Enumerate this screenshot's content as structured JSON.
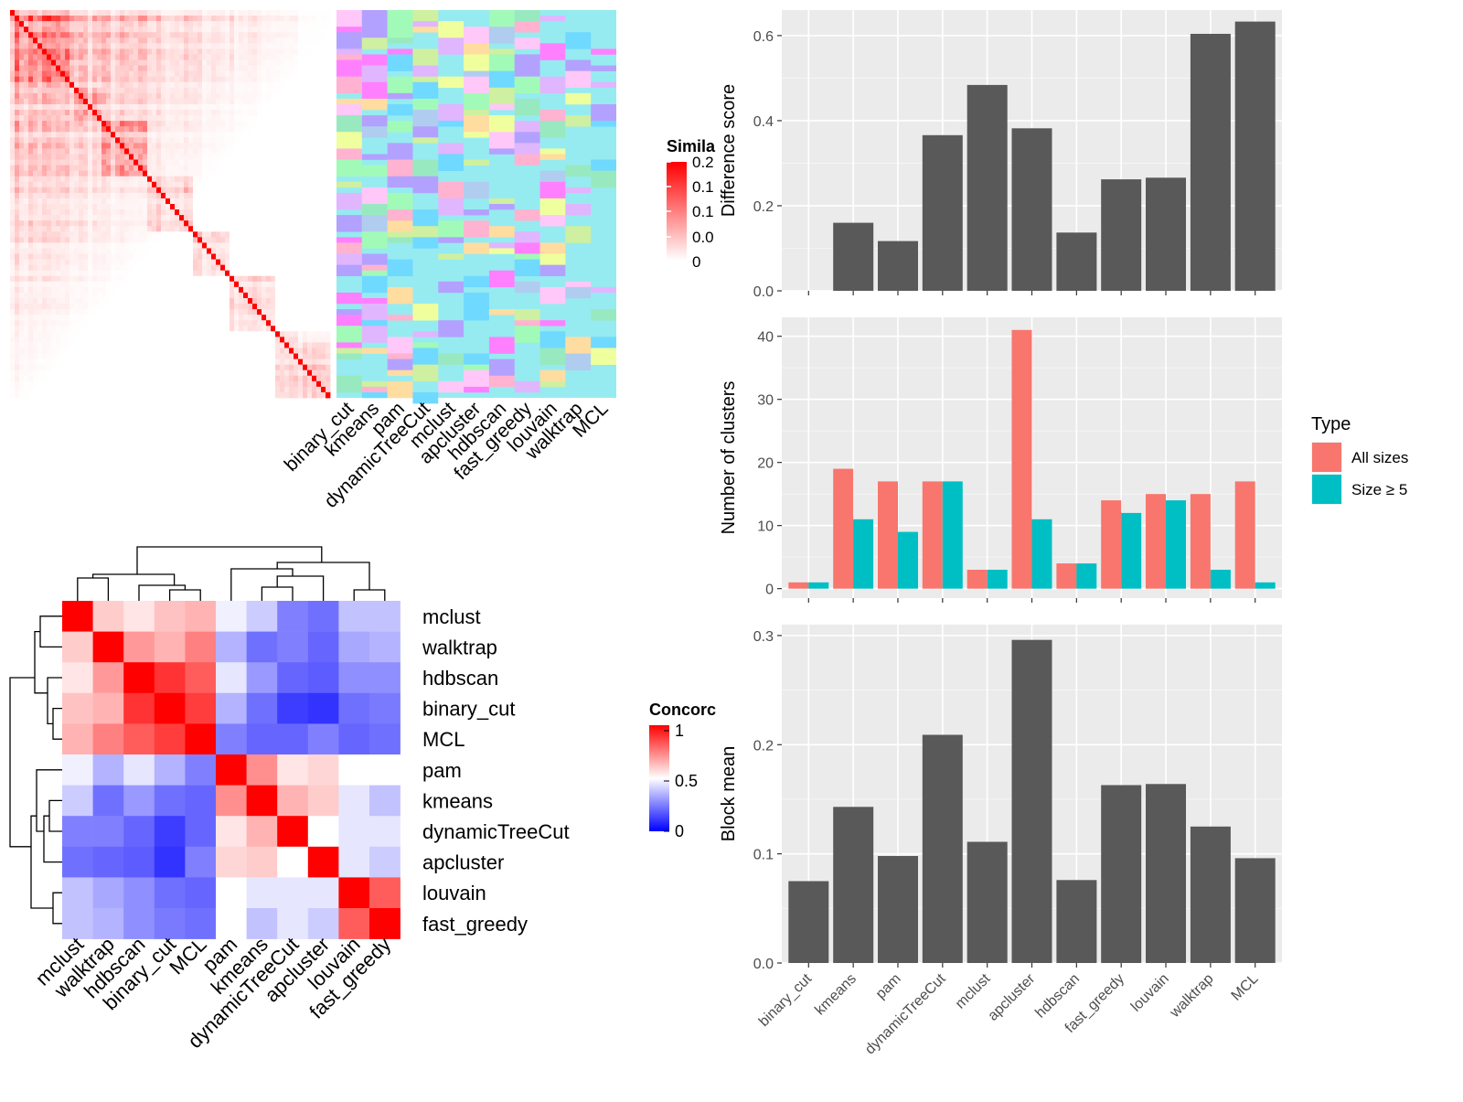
{
  "methods_order": [
    "binary_cut",
    "kmeans",
    "pam",
    "dynamicTreeCut",
    "mclust",
    "apcluster",
    "hdbscan",
    "fast_greedy",
    "louvain",
    "walktrap",
    "MCL"
  ],
  "chart_data": [
    {
      "type": "heatmap",
      "id": "similarity",
      "legend_title": "Simila",
      "legend_ticks": [
        "0.2",
        "0.1",
        "0.1",
        "0.0",
        "0"
      ],
      "column_labels": [
        "binary_cut",
        "kmeans",
        "pam",
        "dynamicTreeCut",
        "mclust",
        "apcluster",
        "hdbscan",
        "fast_greedy",
        "louvain",
        "walktrap",
        "MCL"
      ],
      "colors": {
        "high": "#ff0000",
        "low": "#ffffff",
        "base": "#96ebf0"
      },
      "palette": [
        "#ff80ff",
        "#b3a1ff",
        "#f0ff9e",
        "#a2fab8",
        "#b0cdf0",
        "#ffb3d0",
        "#70d9ff",
        "#cff0a0",
        "#ffc8f8",
        "#99e9c0",
        "#e0b6ff",
        "#ffdca0"
      ]
    },
    {
      "type": "heatmap",
      "id": "concordance",
      "legend_title": "Concorc",
      "legend_ticks": [
        "1",
        "0.5",
        "0"
      ],
      "row_labels": [
        "mclust",
        "walktrap",
        "hdbscan",
        "binary_cut",
        "MCL",
        "pam",
        "kmeans",
        "dynamicTreeCut",
        "apcluster",
        "louvain",
        "fast_greedy"
      ],
      "col_labels": [
        "mclust",
        "walktrap",
        "hdbscan",
        "binary_cut",
        "MCL",
        "pam",
        "kmeans",
        "dynamicTreeCut",
        "apcluster",
        "louvain",
        "fast_greedy"
      ],
      "values": [
        [
          1,
          0.6,
          0.55,
          0.62,
          0.65,
          0.47,
          0.4,
          0.25,
          0.22,
          0.38,
          0.38
        ],
        [
          0.6,
          1,
          0.7,
          0.65,
          0.75,
          0.35,
          0.22,
          0.25,
          0.2,
          0.33,
          0.35
        ],
        [
          0.55,
          0.7,
          1,
          0.9,
          0.82,
          0.45,
          0.3,
          0.2,
          0.18,
          0.28,
          0.28
        ],
        [
          0.62,
          0.65,
          0.9,
          1,
          0.88,
          0.35,
          0.22,
          0.12,
          0.1,
          0.22,
          0.24
        ],
        [
          0.65,
          0.75,
          0.82,
          0.88,
          1,
          0.25,
          0.2,
          0.2,
          0.25,
          0.2,
          0.22
        ],
        [
          0.47,
          0.35,
          0.45,
          0.35,
          0.25,
          1,
          0.72,
          0.55,
          0.58,
          0.5,
          0.5
        ],
        [
          0.4,
          0.22,
          0.3,
          0.22,
          0.2,
          0.72,
          1,
          0.65,
          0.6,
          0.45,
          0.38
        ],
        [
          0.25,
          0.25,
          0.2,
          0.12,
          0.2,
          0.55,
          0.65,
          1,
          0.5,
          0.45,
          0.45
        ],
        [
          0.22,
          0.2,
          0.18,
          0.1,
          0.25,
          0.58,
          0.6,
          0.5,
          1,
          0.45,
          0.4
        ],
        [
          0.38,
          0.33,
          0.28,
          0.22,
          0.2,
          0.5,
          0.45,
          0.45,
          0.45,
          1,
          0.82
        ],
        [
          0.38,
          0.35,
          0.28,
          0.24,
          0.22,
          0.5,
          0.38,
          0.45,
          0.4,
          0.82,
          1
        ]
      ]
    },
    {
      "type": "bar",
      "id": "difference",
      "ylabel": "Difference score",
      "ylim": [
        0,
        0.66
      ],
      "yticks": [
        0.0,
        0.2,
        0.4,
        0.6
      ],
      "ytick_labels": [
        "0.0",
        "0.2",
        "0.4",
        "0.6"
      ],
      "categories": [
        "binary_cut",
        "kmeans",
        "pam",
        "dynamicTreeCut",
        "mclust",
        "apcluster",
        "hdbscan",
        "fast_greedy",
        "louvain",
        "walktrap",
        "MCL"
      ],
      "values": [
        0.0,
        0.16,
        0.117,
        0.366,
        0.484,
        0.382,
        0.137,
        0.262,
        0.266,
        0.604,
        0.633
      ],
      "color": "#595959",
      "grid": true
    },
    {
      "type": "bar",
      "id": "clusters",
      "ylabel": "Number of clusters",
      "ylim": [
        -1.5,
        43
      ],
      "yticks": [
        0,
        10,
        20,
        30,
        40
      ],
      "ytick_labels": [
        "0",
        "10",
        "20",
        "30",
        "40"
      ],
      "categories": [
        "binary_cut",
        "kmeans",
        "pam",
        "dynamicTreeCut",
        "mclust",
        "apcluster",
        "hdbscan",
        "fast_greedy",
        "louvain",
        "walktrap",
        "MCL"
      ],
      "series": [
        {
          "name": "All sizes",
          "color": "#f8766d",
          "values": [
            1,
            19,
            17,
            17,
            3,
            41,
            4,
            14,
            15,
            15,
            17
          ]
        },
        {
          "name": "Size ≥ 5",
          "color": "#00bfc4",
          "values": [
            1,
            11,
            9,
            17,
            3,
            11,
            4,
            12,
            14,
            3,
            1
          ]
        }
      ],
      "legend_title": "Type",
      "legend_position": "right",
      "grid": true
    },
    {
      "type": "bar",
      "id": "blockmean",
      "ylabel": "Block mean",
      "ylim": [
        0,
        0.31
      ],
      "yticks": [
        0.0,
        0.1,
        0.2,
        0.3
      ],
      "ytick_labels": [
        "0.0",
        "0.1",
        "0.2",
        "0.3"
      ],
      "categories": [
        "binary_cut",
        "kmeans",
        "pam",
        "dynamicTreeCut",
        "mclust",
        "apcluster",
        "hdbscan",
        "fast_greedy",
        "louvain",
        "walktrap",
        "MCL"
      ],
      "values": [
        0.075,
        0.143,
        0.098,
        0.209,
        0.111,
        0.296,
        0.076,
        0.163,
        0.164,
        0.125,
        0.096
      ],
      "color": "#595959",
      "grid": true
    }
  ]
}
